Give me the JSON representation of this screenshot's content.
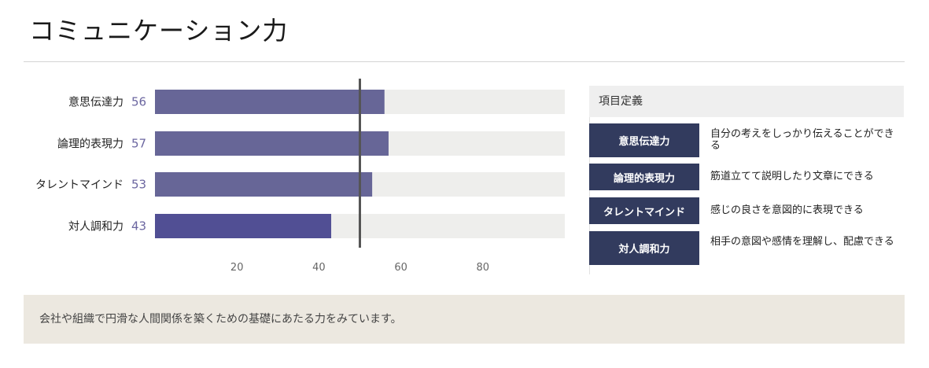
{
  "page": {
    "title": "コミュニケーション力"
  },
  "chart_data": {
    "type": "bar",
    "orientation": "horizontal",
    "categories": [
      "意思伝達力",
      "論理的表現力",
      "タレントマインド",
      "対人調和力"
    ],
    "values": [
      56,
      57,
      53,
      43
    ],
    "bar_colors": [
      "#676697",
      "#676697",
      "#676697",
      "#514f94"
    ],
    "track_color": "#eeeeec",
    "reference_line": 50,
    "xlim": [
      0,
      100
    ],
    "x_ticks": [
      20,
      40,
      60,
      80
    ],
    "grid": false,
    "title": "",
    "xlabel": "",
    "ylabel": ""
  },
  "definitions": {
    "header": "項目定義",
    "items": [
      {
        "term": "意思伝達力",
        "desc": "自分の考えをしっかり伝えることができる"
      },
      {
        "term": "論理的表現力",
        "desc": "筋道立てて説明したり文章にできる"
      },
      {
        "term": "タレントマインド",
        "desc": "感じの良さを意図的に表現できる"
      },
      {
        "term": "対人調和力",
        "desc": "相手の意図や感情を理解し、配慮できる"
      }
    ]
  },
  "note": {
    "text": "会社や組織で円滑な人間関係を築くための基礎にあたる力をみています。"
  }
}
